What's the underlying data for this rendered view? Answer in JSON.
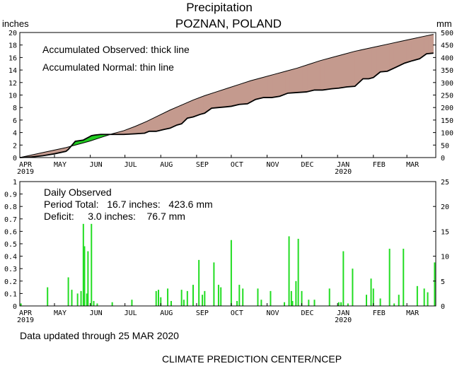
{
  "header": {
    "title": "Precipitation",
    "location": "POZNAN, POLAND",
    "unit_left": "inches",
    "unit_right": "mm"
  },
  "colors": {
    "deficit_fill": "#c49a8e",
    "surplus_fill": "#22cc22",
    "bar": "#22dd22",
    "line": "#000000"
  },
  "footer": {
    "updated": "Data updated through 25 MAR 2020",
    "source": "CLIMATE PREDICTION CENTER/NCEP"
  },
  "chart_data": [
    {
      "type": "area",
      "x_axis_months": [
        "APR",
        "MAY",
        "JUN",
        "JUL",
        "AUG",
        "SEP",
        "OCT",
        "NOV",
        "DEC",
        "JAN",
        "FEB",
        "MAR"
      ],
      "x_axis_years": {
        "APR": "2019",
        "JAN": "2020"
      },
      "ylim_inches": [
        0,
        20
      ],
      "y_ticks_inches": [
        "0",
        "2",
        "4",
        "6",
        "8",
        "10",
        "12",
        "14",
        "16",
        "18",
        "20"
      ],
      "ylim_mm": [
        0,
        500
      ],
      "y_ticks_mm": [
        "0",
        "50",
        "100",
        "150",
        "200",
        "250",
        "300",
        "350",
        "400",
        "450",
        "500"
      ],
      "annotations": [
        "Accumulated Observed: thick line",
        "Accumulated Normal: thin line"
      ],
      "series": [
        {
          "name": "Accumulated Observed",
          "x_days": [
            0,
            10,
            20,
            30,
            40,
            42,
            48,
            55,
            62,
            65,
            70,
            80,
            90,
            100,
            108,
            112,
            118,
            125,
            130,
            136,
            140,
            145,
            150,
            156,
            160,
            166,
            172,
            178,
            183,
            190,
            197,
            204,
            211,
            218,
            225,
            232,
            240,
            248,
            255,
            262,
            270,
            276,
            283,
            290,
            297,
            302,
            306,
            312,
            318,
            325,
            333,
            340,
            346,
            352,
            358
          ],
          "inches": [
            0.0,
            0.1,
            0.3,
            0.6,
            1.0,
            1.3,
            2.6,
            2.8,
            3.5,
            3.6,
            3.7,
            3.7,
            3.7,
            3.8,
            3.9,
            4.2,
            4.2,
            4.5,
            4.7,
            5.2,
            5.4,
            6.3,
            6.5,
            6.9,
            7.1,
            7.9,
            8.0,
            8.1,
            8.2,
            8.5,
            8.6,
            9.3,
            9.6,
            9.6,
            9.8,
            10.3,
            10.4,
            10.5,
            10.8,
            10.8,
            11.0,
            11.1,
            11.3,
            11.4,
            12.6,
            12.6,
            12.8,
            13.7,
            13.8,
            14.4,
            15.1,
            15.5,
            15.8,
            16.6,
            16.7
          ]
        },
        {
          "name": "Accumulated Normal",
          "x_days": [
            0,
            20,
            40,
            60,
            70,
            80,
            90,
            100,
            110,
            120,
            130,
            140,
            150,
            160,
            170,
            180,
            190,
            200,
            210,
            220,
            230,
            240,
            250,
            260,
            270,
            280,
            290,
            300,
            310,
            320,
            330,
            340,
            350,
            358
          ],
          "inches": [
            0.0,
            0.8,
            1.6,
            2.6,
            3.2,
            3.8,
            4.3,
            5.0,
            5.8,
            6.7,
            7.6,
            8.4,
            9.2,
            9.9,
            10.5,
            11.1,
            11.7,
            12.3,
            12.8,
            13.3,
            13.8,
            14.3,
            14.9,
            15.5,
            16.0,
            16.5,
            17.0,
            17.4,
            17.8,
            18.2,
            18.6,
            19.0,
            19.4,
            19.7
          ]
        }
      ]
    },
    {
      "type": "bar",
      "x_axis_months": [
        "APR",
        "MAY",
        "JUN",
        "JUL",
        "AUG",
        "SEP",
        "OCT",
        "NOV",
        "DEC",
        "JAN",
        "FEB",
        "MAR"
      ],
      "x_axis_years": {
        "APR": "2019",
        "JAN": "2020"
      },
      "ylim_inches": [
        0,
        1
      ],
      "y_ticks_inches": [
        "0",
        "0.1",
        "0.2",
        "0.3",
        "0.4",
        "0.5",
        "0.6",
        "0.7",
        "0.8",
        "0.9",
        "1"
      ],
      "ylim_mm": [
        0,
        25
      ],
      "y_ticks_mm": [
        "0",
        "5",
        "10",
        "15",
        "20",
        "25"
      ],
      "annotations": [
        "Daily Observed",
        "Period Total:   16.7 inches:   423.6 mm",
        "Deficit:     3.0 inches:    76.7 mm"
      ],
      "series": [
        {
          "name": "Daily Observed",
          "x_days": [
            1,
            24,
            42,
            45,
            50,
            53,
            55,
            56,
            58,
            59,
            62,
            64,
            67,
            80,
            97,
            118,
            120,
            122,
            128,
            131,
            140,
            142,
            145,
            150,
            155,
            158,
            160,
            168,
            172,
            174,
            183,
            188,
            190,
            193,
            206,
            209,
            217,
            229,
            233,
            235,
            236,
            239,
            241,
            244,
            250,
            255,
            268,
            276,
            278,
            280,
            284,
            288,
            300,
            304,
            306,
            312,
            320,
            324,
            328,
            332,
            344,
            350,
            353,
            359
          ],
          "inches": [
            0.02,
            0.15,
            0.23,
            0.13,
            0.1,
            0.12,
            0.66,
            0.48,
            0.1,
            0.44,
            0.66,
            0.04,
            0.02,
            0.03,
            0.05,
            0.12,
            0.13,
            0.07,
            0.14,
            0.04,
            0.13,
            0.05,
            0.12,
            0.17,
            0.37,
            0.09,
            0.12,
            0.35,
            0.17,
            0.15,
            0.53,
            0.04,
            0.17,
            0.14,
            0.14,
            0.05,
            0.12,
            0.03,
            0.56,
            0.12,
            0.04,
            0.2,
            0.54,
            0.12,
            0.05,
            0.05,
            0.14,
            0.03,
            0.03,
            0.44,
            0.02,
            0.3,
            0.09,
            0.22,
            0.14,
            0.06,
            0.46,
            0.02,
            0.09,
            0.46,
            0.16,
            0.14,
            0.11,
            0.35
          ]
        }
      ]
    }
  ]
}
